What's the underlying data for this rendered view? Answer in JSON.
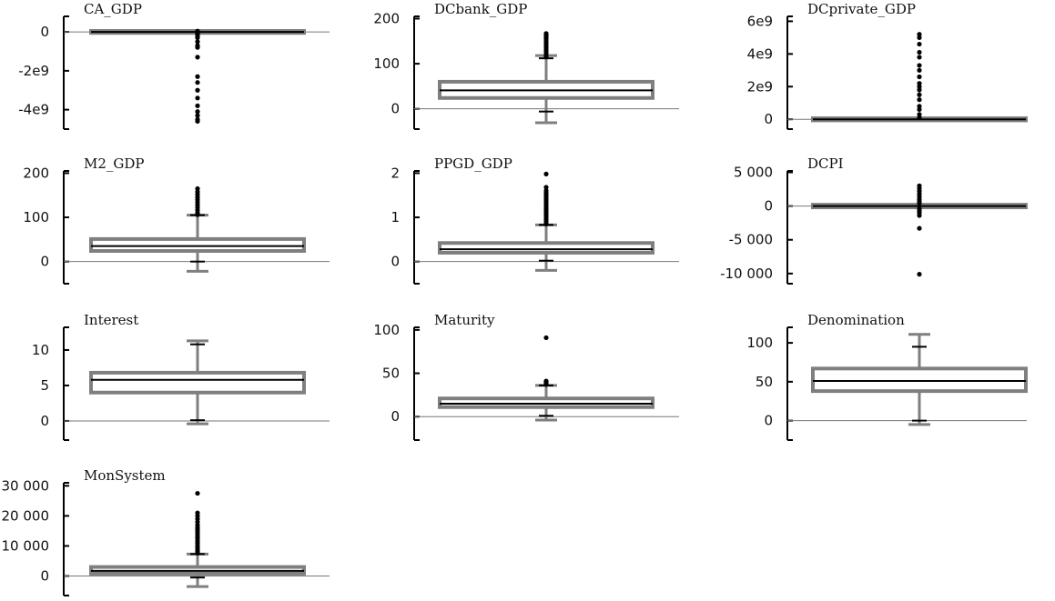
{
  "chart_data": [
    {
      "type": "box",
      "title": "CA_GDP",
      "ylim": [
        -5000000000,
        800000000
      ],
      "yticks": [
        0,
        -2000000000,
        -4000000000
      ],
      "ytick_labels": [
        "0",
        "-2e9",
        "-4e9"
      ],
      "box": {
        "q1": -5000000,
        "median": 0,
        "q3": 5000000,
        "whisker_low": -5000000,
        "whisker_high": 5000000,
        "cap_low": 0,
        "cap_high": 0
      },
      "outliers": [
        40000000,
        -80000000,
        -100000000,
        -150000000,
        -250000000,
        -300000000,
        -500000000,
        -700000000,
        -800000000,
        -1300000000,
        -2300000000,
        -2600000000,
        -3000000000,
        -3400000000,
        -3800000000,
        -4100000000,
        -4300000000,
        -4500000000,
        -4600000000
      ]
    },
    {
      "type": "box",
      "title": "DCbank_GDP",
      "ylim": [
        -45,
        205
      ],
      "yticks": [
        200,
        100,
        0
      ],
      "ytick_labels": [
        "200",
        "100",
        "0"
      ],
      "box": {
        "q1": 24,
        "median": 41,
        "q3": 60,
        "whisker_low": -31,
        "whisker_high": 118,
        "cap_low": -6,
        "cap_high": 112
      },
      "outliers": [
        115,
        120,
        125,
        130,
        135,
        140,
        145,
        150,
        155,
        158,
        161,
        164,
        167
      ]
    },
    {
      "type": "box",
      "title": "DCprivate_GDP",
      "ylim": [
        -600000000,
        6300000000
      ],
      "yticks": [
        6000000000,
        4000000000,
        2000000000,
        0
      ],
      "ytick_labels": [
        "6e9",
        "4e9",
        "2e9",
        "0"
      ],
      "box": {
        "q1": -10000000,
        "median": 0,
        "q3": 10000000,
        "whisker_low": -10000000,
        "whisker_high": 10000000,
        "cap_low": 0,
        "cap_high": 0
      },
      "outliers": [
        100000000,
        300000000,
        600000000,
        800000000,
        1200000000,
        1500000000,
        1800000000,
        2000000000,
        2200000000,
        2600000000,
        3000000000,
        3300000000,
        3800000000,
        4100000000,
        4600000000,
        5000000000,
        5200000000
      ]
    },
    {
      "type": "box",
      "title": "M2_GDP",
      "ylim": [
        -50,
        205
      ],
      "yticks": [
        200,
        100,
        0
      ],
      "ytick_labels": [
        "200",
        "100",
        "0"
      ],
      "box": {
        "q1": 24,
        "median": 35,
        "q3": 51,
        "whisker_low": -22,
        "whisker_high": 105,
        "cap_low": 0,
        "cap_high": 105
      },
      "outliers": [
        106,
        110,
        116,
        122,
        128,
        134,
        140,
        146,
        152,
        158,
        165
      ]
    },
    {
      "type": "box",
      "title": "PPGD_GDP",
      "ylim": [
        -0.5,
        2.05
      ],
      "yticks": [
        2,
        1,
        0
      ],
      "ytick_labels": [
        "2",
        "1",
        "0"
      ],
      "box": {
        "q1": 0.2,
        "median": 0.28,
        "q3": 0.42,
        "whisker_low": -0.2,
        "whisker_high": 0.83,
        "cap_low": 0.02,
        "cap_high": 0.83
      },
      "outliers": [
        0.85,
        0.9,
        0.95,
        1.0,
        1.05,
        1.1,
        1.15,
        1.2,
        1.25,
        1.3,
        1.35,
        1.4,
        1.45,
        1.5,
        1.55,
        1.6,
        1.68,
        1.98
      ]
    },
    {
      "type": "box",
      "title": "DCPI",
      "ylim": [
        -11500,
        5200
      ],
      "yticks": [
        5000,
        0,
        -5000,
        -10000
      ],
      "ytick_labels": [
        "5 000",
        "0",
        "-5 000",
        "-10 000"
      ],
      "box": {
        "q1": -60,
        "median": 0,
        "q3": 60,
        "whisker_low": -60,
        "whisker_high": 60,
        "cap_low": 0,
        "cap_high": 0
      },
      "outliers": [
        3000,
        2600,
        2200,
        1800,
        1400,
        1000,
        700,
        400,
        -400,
        -700,
        -1000,
        -1400,
        -3300,
        -10100
      ]
    },
    {
      "type": "box",
      "title": "Interest",
      "ylim": [
        -2.7,
        13.2
      ],
      "yticks": [
        10,
        5,
        0
      ],
      "ytick_labels": [
        "10",
        "5",
        "0"
      ],
      "box": {
        "q1": 4,
        "median": 5.8,
        "q3": 6.8,
        "whisker_low": -0.4,
        "whisker_high": 11.3,
        "cap_low": 0.1,
        "cap_high": 10.8
      },
      "outliers": []
    },
    {
      "type": "box",
      "title": "Maturity",
      "ylim": [
        -27,
        103
      ],
      "yticks": [
        100,
        50,
        0
      ],
      "ytick_labels": [
        "100",
        "50",
        "0"
      ],
      "box": {
        "q1": 11,
        "median": 15,
        "q3": 21,
        "whisker_low": -4,
        "whisker_high": 36,
        "cap_low": 1,
        "cap_high": 36
      },
      "outliers": [
        37,
        38,
        39,
        40,
        41,
        91
      ]
    },
    {
      "type": "box",
      "title": "Denomination",
      "ylim": [
        -25,
        120
      ],
      "yticks": [
        100,
        50,
        0
      ],
      "ytick_labels": [
        "100",
        "50",
        "0"
      ],
      "box": {
        "q1": 38,
        "median": 51,
        "q3": 67,
        "whisker_low": -5,
        "whisker_high": 111,
        "cap_low": 0,
        "cap_high": 95
      },
      "outliers": []
    },
    {
      "type": "box",
      "title": "MonSystem",
      "ylim": [
        -6500,
        31000
      ],
      "yticks": [
        30000,
        20000,
        10000,
        0
      ],
      "ytick_labels": [
        "30 000",
        "20 000",
        "10 000",
        "0"
      ],
      "box": {
        "q1": 800,
        "median": 1700,
        "q3": 3000,
        "whisker_low": -3500,
        "whisker_high": 7300,
        "cap_low": -500,
        "cap_high": 7300
      },
      "outliers": [
        7600,
        8200,
        8800,
        9500,
        10200,
        11000,
        11700,
        12500,
        13200,
        14000,
        14800,
        15500,
        16200,
        17000,
        18000,
        19000,
        20000,
        21000,
        27500
      ]
    }
  ]
}
